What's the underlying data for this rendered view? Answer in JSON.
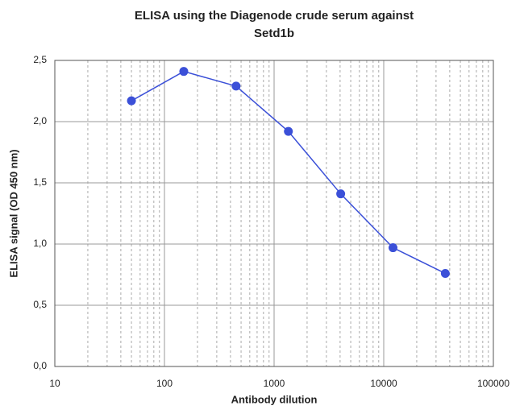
{
  "chart_data": {
    "type": "line",
    "title": [
      "ELISA using the Diagenode crude serum against",
      "Setd1b"
    ],
    "xlabel": "Antibody dilution",
    "ylabel": "ELISA signal (OD 450 nm)",
    "xscale": "log",
    "xlim": [
      10,
      100000
    ],
    "xticks": [
      10,
      100,
      1000,
      10000,
      100000
    ],
    "ylim": [
      0,
      2.5
    ],
    "yticks": [
      {
        "value": 0,
        "label": "0,0"
      },
      {
        "value": 0.5,
        "label": "0,5"
      },
      {
        "value": 1,
        "label": "1,0"
      },
      {
        "value": 1.5,
        "label": "1,5"
      },
      {
        "value": 2,
        "label": "2,0"
      },
      {
        "value": 2.5,
        "label": "2,5"
      }
    ],
    "grid": true,
    "minor_grid": true,
    "series": [
      {
        "color": "#3b50d8",
        "x": [
          50,
          150,
          450,
          1350,
          4050,
          12150,
          36450
        ],
        "values": [
          2.17,
          2.41,
          2.29,
          1.92,
          1.41,
          0.97,
          0.76
        ]
      }
    ]
  }
}
